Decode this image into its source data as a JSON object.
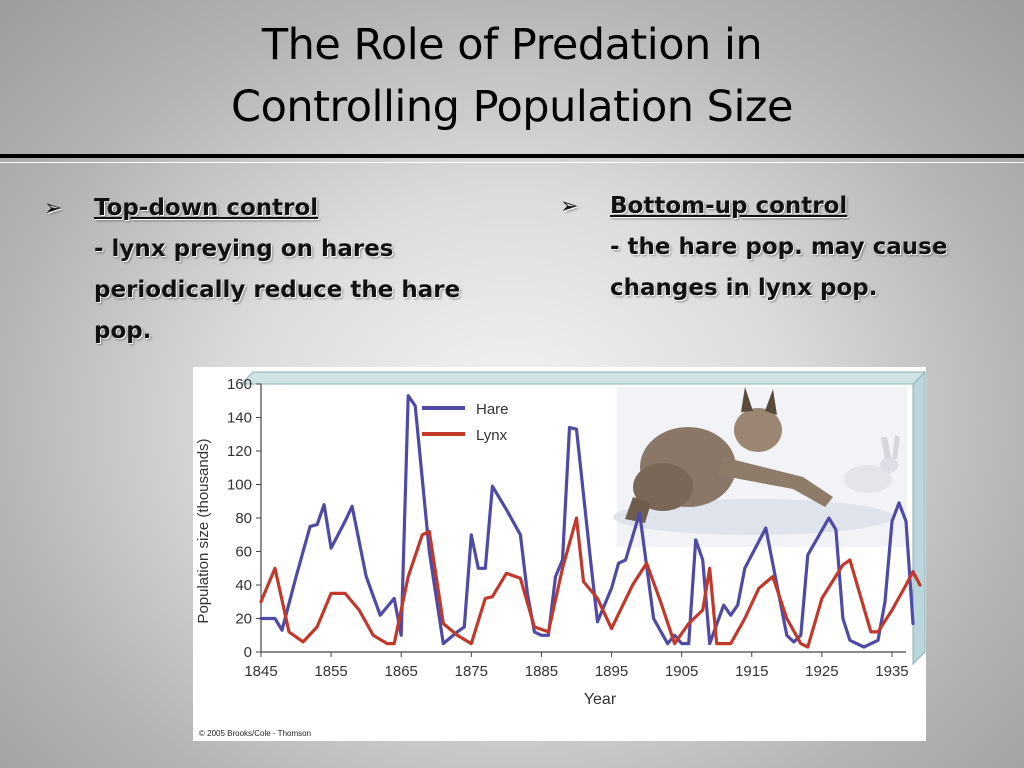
{
  "slide": {
    "title_line1": "The Role of Predation in",
    "title_line2": "Controlling Population Size"
  },
  "bullets": [
    {
      "arrow": "➢",
      "heading": "Top-down control",
      "lines": [
        "- lynx preying on hares",
        "periodically reduce the hare",
        "pop."
      ]
    },
    {
      "arrow": "➢",
      "heading": "Bottom-up control",
      "lines": [
        "- the hare pop.  may cause",
        "changes in lynx pop."
      ]
    }
  ],
  "colors": {
    "hare": "#4f4aa6",
    "lynx": "#c0392b",
    "frame_top": "#cfe3e6",
    "frame_side": "#b8d6db"
  },
  "illustration": {
    "icon": "lynx-chasing-hare-photo"
  },
  "copyright": "© 2005 Brooks/Cole - Thomson",
  "chart_data": {
    "type": "line",
    "xlabel": "Year",
    "ylabel": "Population size (thousands)",
    "xlim": [
      1845,
      1937
    ],
    "ylim": [
      0,
      160
    ],
    "xticks": [
      1845,
      1855,
      1865,
      1875,
      1885,
      1895,
      1905,
      1915,
      1925,
      1935
    ],
    "yticks": [
      0,
      20,
      40,
      60,
      80,
      100,
      120,
      140,
      160
    ],
    "grid": false,
    "legend": "top-left",
    "series": [
      {
        "name": "Hare",
        "color": "#4f4aa6",
        "points": [
          [
            1845,
            20
          ],
          [
            1847,
            20
          ],
          [
            1848,
            13
          ],
          [
            1850,
            45
          ],
          [
            1852,
            75
          ],
          [
            1853,
            76
          ],
          [
            1854,
            88
          ],
          [
            1855,
            62
          ],
          [
            1857,
            78
          ],
          [
            1858,
            87
          ],
          [
            1860,
            45
          ],
          [
            1862,
            22
          ],
          [
            1864,
            32
          ],
          [
            1865,
            10
          ],
          [
            1866,
            153
          ],
          [
            1867,
            147
          ],
          [
            1869,
            60
          ],
          [
            1871,
            5
          ],
          [
            1873,
            12
          ],
          [
            1874,
            15
          ],
          [
            1875,
            70
          ],
          [
            1876,
            50
          ],
          [
            1877,
            50
          ],
          [
            1878,
            99
          ],
          [
            1880,
            85
          ],
          [
            1882,
            70
          ],
          [
            1883,
            35
          ],
          [
            1884,
            12
          ],
          [
            1885,
            10
          ],
          [
            1886,
            10
          ],
          [
            1887,
            45
          ],
          [
            1888,
            55
          ],
          [
            1889,
            134
          ],
          [
            1890,
            133
          ],
          [
            1892,
            55
          ],
          [
            1893,
            18
          ],
          [
            1895,
            38
          ],
          [
            1896,
            53
          ],
          [
            1897,
            55
          ],
          [
            1899,
            83
          ],
          [
            1901,
            20
          ],
          [
            1903,
            5
          ],
          [
            1904,
            10
          ],
          [
            1905,
            5
          ],
          [
            1906,
            5
          ],
          [
            1907,
            67
          ],
          [
            1908,
            55
          ],
          [
            1909,
            5
          ],
          [
            1911,
            28
          ],
          [
            1912,
            22
          ],
          [
            1913,
            28
          ],
          [
            1914,
            50
          ],
          [
            1917,
            74
          ],
          [
            1920,
            10
          ],
          [
            1921,
            6
          ],
          [
            1922,
            10
          ],
          [
            1923,
            58
          ],
          [
            1926,
            80
          ],
          [
            1927,
            73
          ],
          [
            1928,
            20
          ],
          [
            1929,
            7
          ],
          [
            1931,
            3
          ],
          [
            1933,
            7
          ],
          [
            1934,
            30
          ],
          [
            1935,
            78
          ],
          [
            1936,
            89
          ],
          [
            1937,
            78
          ],
          [
            1938,
            17
          ]
        ]
      },
      {
        "name": "Lynx",
        "color": "#c0392b",
        "points": [
          [
            1845,
            30
          ],
          [
            1847,
            50
          ],
          [
            1849,
            12
          ],
          [
            1851,
            6
          ],
          [
            1853,
            15
          ],
          [
            1855,
            35
          ],
          [
            1857,
            35
          ],
          [
            1859,
            25
          ],
          [
            1861,
            10
          ],
          [
            1863,
            5
          ],
          [
            1864,
            5
          ],
          [
            1866,
            45
          ],
          [
            1868,
            70
          ],
          [
            1869,
            72
          ],
          [
            1871,
            17
          ],
          [
            1873,
            10
          ],
          [
            1875,
            5
          ],
          [
            1877,
            32
          ],
          [
            1878,
            33
          ],
          [
            1880,
            47
          ],
          [
            1882,
            44
          ],
          [
            1884,
            15
          ],
          [
            1886,
            12
          ],
          [
            1888,
            50
          ],
          [
            1890,
            80
          ],
          [
            1891,
            42
          ],
          [
            1893,
            32
          ],
          [
            1895,
            14
          ],
          [
            1898,
            40
          ],
          [
            1900,
            53
          ],
          [
            1902,
            30
          ],
          [
            1904,
            5
          ],
          [
            1906,
            17
          ],
          [
            1908,
            25
          ],
          [
            1909,
            50
          ],
          [
            1910,
            5
          ],
          [
            1912,
            5
          ],
          [
            1914,
            20
          ],
          [
            1916,
            38
          ],
          [
            1918,
            45
          ],
          [
            1920,
            20
          ],
          [
            1922,
            5
          ],
          [
            1923,
            3
          ],
          [
            1925,
            32
          ],
          [
            1928,
            52
          ],
          [
            1929,
            55
          ],
          [
            1932,
            12
          ],
          [
            1933,
            12
          ],
          [
            1935,
            25
          ],
          [
            1937,
            40
          ],
          [
            1938,
            48
          ],
          [
            1939,
            40
          ]
        ]
      }
    ]
  }
}
